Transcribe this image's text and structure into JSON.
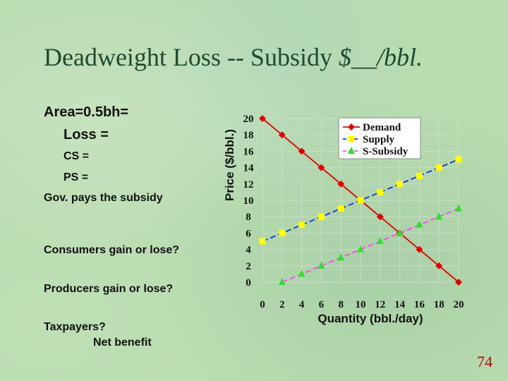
{
  "slide": {
    "title_main": "Deadweight Loss -- Subsidy ",
    "title_italic": "$__/bbl.",
    "page_number": "74"
  },
  "left_text": {
    "area": "Area=0.5bh=",
    "loss": "Loss =",
    "cs": "CS =",
    "ps": "PS =",
    "gov": "Gov. pays the subsidy",
    "consumers": "Consumers gain or lose?",
    "producers": "Producers gain or lose?",
    "taxpayers": "Taxpayers?",
    "net_benefit": "Net benefit"
  },
  "chart_data": {
    "type": "line",
    "xlabel": "Quantity (bbl./day)",
    "ylabel": "Price ($/bbl.)",
    "xlim": [
      0,
      20
    ],
    "ylim": [
      0,
      20
    ],
    "xticks": [
      0,
      2,
      4,
      6,
      8,
      10,
      12,
      14,
      16,
      18,
      20
    ],
    "yticks": [
      0,
      2,
      4,
      6,
      8,
      10,
      12,
      14,
      16,
      18,
      20
    ],
    "grid": true,
    "legend_position": "top-right",
    "series": [
      {
        "name": "Demand",
        "color": "#e00000",
        "marker": "diamond",
        "x": [
          0,
          2,
          4,
          6,
          8,
          10,
          12,
          14,
          16,
          18,
          20
        ],
        "y": [
          20,
          18,
          16,
          14,
          12,
          10,
          8,
          6,
          4,
          2,
          0
        ]
      },
      {
        "name": "Supply",
        "color": "#ffff00",
        "line_color": "#1030e0",
        "marker": "square",
        "x": [
          0,
          2,
          4,
          6,
          8,
          10,
          12,
          14,
          16,
          18,
          20
        ],
        "y": [
          5,
          6,
          7,
          8,
          9,
          10,
          11,
          12,
          13,
          14,
          15
        ]
      },
      {
        "name": "S-Subsidy",
        "color": "#33dd33",
        "line_color": "#ff40ff",
        "marker": "triangle",
        "x": [
          2,
          4,
          6,
          8,
          10,
          12,
          14,
          16,
          18,
          20
        ],
        "y": [
          0,
          1,
          2,
          3,
          4,
          5,
          6,
          7,
          8,
          9
        ]
      }
    ]
  }
}
